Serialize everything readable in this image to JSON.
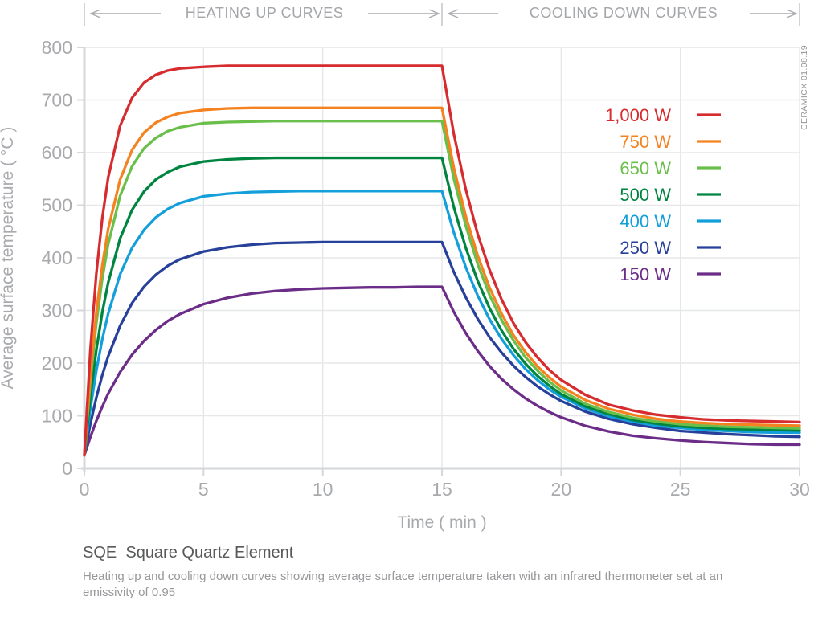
{
  "header": {
    "left_label": "HEATING UP CURVES",
    "right_label": "COOLING DOWN CURVES"
  },
  "watermark": "CERAMICX 01.08.19",
  "footer": {
    "title": "SQE  Square Quartz Element",
    "subtitle": "Heating up and cooling down curves showing average surface temperature taken with an infrared thermometer set at an emissivity of 0.95"
  },
  "chart_data": {
    "type": "line",
    "title": "SQE Square Quartz Element",
    "xlabel": "Time ( min )",
    "ylabel": "Average surface temperature ( °C )",
    "xlim": [
      0,
      30
    ],
    "ylim": [
      0,
      800
    ],
    "x_ticks": [
      0,
      5,
      10,
      15,
      20,
      25,
      30
    ],
    "y_ticks": [
      0,
      100,
      200,
      300,
      400,
      500,
      600,
      700,
      800
    ],
    "grid": true,
    "legend_position": "upper right",
    "heating_interval_min": [
      0,
      15
    ],
    "cooling_interval_min": [
      15,
      30
    ],
    "x": [
      0,
      0.25,
      0.5,
      0.75,
      1,
      1.5,
      2,
      2.5,
      3,
      3.5,
      4,
      5,
      6,
      7,
      8,
      9,
      10,
      11,
      12,
      13,
      14,
      15,
      15.5,
      16,
      16.5,
      17,
      17.5,
      18,
      18.5,
      19,
      19.5,
      20,
      21,
      22,
      23,
      24,
      25,
      26,
      27,
      28,
      29,
      30
    ],
    "series": [
      {
        "name": "1,000 W",
        "color": "#d62b2f",
        "plateau_c": 765,
        "end_c": 88,
        "values": [
          25,
          224,
          369,
          475,
          553,
          651,
          704,
          733,
          748,
          756,
          760,
          763,
          765,
          765,
          765,
          765,
          765,
          765,
          765,
          765,
          765,
          765,
          635,
          530,
          445,
          377,
          321,
          276,
          240,
          211,
          187,
          168,
          140,
          121,
          110,
          102,
          97,
          93,
          91,
          90,
          89,
          88
        ]
      },
      {
        "name": "750 W",
        "color": "#f58220",
        "plateau_c": 685,
        "end_c": 81,
        "values": [
          25,
          178,
          295,
          385,
          455,
          549,
          605,
          638,
          657,
          668,
          675,
          681,
          684,
          685,
          685,
          685,
          685,
          685,
          685,
          685,
          685,
          685,
          571,
          479,
          404,
          343,
          294,
          253,
          221,
          194,
          173,
          155,
          130,
          113,
          102,
          94,
          89,
          86,
          84,
          83,
          82,
          81
        ]
      },
      {
        "name": "650 W",
        "color": "#6abf4b",
        "plateau_c": 660,
        "end_c": 76,
        "values": [
          25,
          165,
          275,
          360,
          426,
          518,
          574,
          608,
          628,
          641,
          648,
          656,
          658,
          659,
          660,
          660,
          660,
          660,
          660,
          660,
          660,
          660,
          550,
          461,
          388,
          329,
          282,
          243,
          211,
          186,
          165,
          148,
          123,
          107,
          96,
          89,
          84,
          81,
          79,
          78,
          77,
          76
        ]
      },
      {
        "name": "500 W",
        "color": "#008540",
        "plateau_c": 590,
        "end_c": 72,
        "values": [
          25,
          135,
          224,
          296,
          353,
          437,
          491,
          526,
          549,
          563,
          573,
          583,
          587,
          589,
          590,
          590,
          590,
          590,
          590,
          590,
          590,
          590,
          496,
          419,
          356,
          304,
          262,
          227,
          199,
          176,
          157,
          141,
          118,
          103,
          92,
          85,
          80,
          77,
          75,
          74,
          73,
          72
        ]
      },
      {
        "name": "400 W",
        "color": "#129fda",
        "plateau_c": 527,
        "end_c": 68,
        "values": [
          25,
          113,
          185,
          245,
          294,
          369,
          419,
          453,
          477,
          493,
          504,
          517,
          522,
          525,
          526,
          527,
          527,
          527,
          527,
          527,
          527,
          527,
          448,
          382,
          328,
          283,
          246,
          215,
          189,
          168,
          150,
          136,
          114,
          99,
          89,
          81,
          77,
          73,
          71,
          69,
          68,
          68
        ]
      },
      {
        "name": "250 W",
        "color": "#27409a",
        "plateau_c": 430,
        "end_c": 60,
        "values": [
          25,
          84,
          134,
          177,
          213,
          271,
          314,
          345,
          368,
          385,
          397,
          412,
          420,
          425,
          428,
          429,
          430,
          430,
          430,
          430,
          430,
          430,
          373,
          325,
          284,
          249,
          220,
          195,
          174,
          156,
          141,
          128,
          108,
          94,
          84,
          77,
          71,
          68,
          65,
          63,
          61,
          60
        ]
      },
      {
        "name": "150 W",
        "color": "#6b2d87",
        "plateau_c": 345,
        "end_c": 45,
        "values": [
          25,
          59,
          90,
          117,
          142,
          183,
          216,
          242,
          263,
          280,
          293,
          312,
          324,
          332,
          337,
          340,
          342,
          343,
          344,
          344,
          345,
          345,
          297,
          257,
          223,
          194,
          170,
          150,
          133,
          119,
          107,
          97,
          81,
          70,
          62,
          57,
          53,
          50,
          48,
          46,
          45,
          45
        ]
      }
    ]
  }
}
